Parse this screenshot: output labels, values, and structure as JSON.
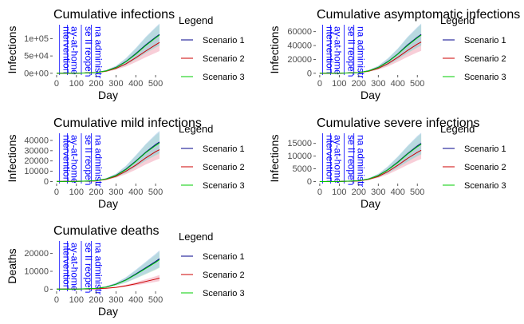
{
  "legend_title": "Legend",
  "series_colors": {
    "Scenario 1": "#00008b",
    "Scenario 2": "#cc0000",
    "Scenario 3": "#00cc00"
  },
  "band_colors": {
    "Scenario 1": "#9ec5e8",
    "Scenario 2": "#f2a6b8",
    "Scenario 3": "#b8e8b8"
  },
  "annotation_color": "#0000ff",
  "annotations": [
    {
      "x": 15,
      "label": "ntervention"
    },
    {
      "x": 55,
      "label": "ay-at-home"
    },
    {
      "x": 125,
      "label": "se II reopen"
    },
    {
      "x": 175,
      "label": "na administr"
    }
  ],
  "chart_data": [
    {
      "type": "line",
      "title": "Cumulative infections",
      "xlabel": "Day",
      "ylabel": "Infections",
      "xlim": [
        -20,
        540
      ],
      "ylim": [
        -5000,
        140000
      ],
      "xticks": [
        0,
        100,
        200,
        300,
        400,
        500
      ],
      "yticks": [
        0,
        50000,
        100000
      ],
      "ytick_labels": [
        "0e+00",
        "5e+04",
        "1e+05"
      ],
      "x": [
        0,
        100,
        200,
        250,
        300,
        350,
        400,
        450,
        500,
        520
      ],
      "series": [
        {
          "name": "Scenario 1",
          "values": [
            0,
            200,
            2000,
            7000,
            17000,
            34000,
            57000,
            82000,
            104000,
            112000
          ]
        },
        {
          "name": "Scenario 2",
          "values": [
            0,
            200,
            1800,
            6000,
            14000,
            27000,
            45000,
            64000,
            82000,
            89000
          ]
        },
        {
          "name": "Scenario 3",
          "values": [
            0,
            200,
            2000,
            6800,
            16500,
            33000,
            55000,
            80000,
            102000,
            110000
          ]
        }
      ]
    },
    {
      "type": "line",
      "title": "Cumulative asymptomatic infections",
      "xlabel": "Day",
      "ylabel": "Infections",
      "xlim": [
        -20,
        540
      ],
      "ylim": [
        -2500,
        70000
      ],
      "xticks": [
        0,
        100,
        200,
        300,
        400,
        500
      ],
      "yticks": [
        0,
        20000,
        40000,
        60000
      ],
      "ytick_labels": [
        "0",
        "20000",
        "40000",
        "60000"
      ],
      "x": [
        0,
        100,
        200,
        250,
        300,
        350,
        400,
        450,
        500,
        520
      ],
      "series": [
        {
          "name": "Scenario 1",
          "values": [
            0,
            100,
            1000,
            3500,
            8500,
            17000,
            28000,
            41000,
            52000,
            56000
          ]
        },
        {
          "name": "Scenario 2",
          "values": [
            0,
            100,
            900,
            3000,
            7000,
            14000,
            23000,
            33000,
            42000,
            45000
          ]
        },
        {
          "name": "Scenario 3",
          "values": [
            0,
            100,
            1000,
            3400,
            8300,
            16500,
            27500,
            40000,
            51000,
            55000
          ]
        }
      ]
    },
    {
      "type": "line",
      "title": "Cumulative mild infections",
      "xlabel": "Day",
      "ylabel": "Infections",
      "xlim": [
        -20,
        540
      ],
      "ylim": [
        -2000,
        47000
      ],
      "xticks": [
        0,
        100,
        200,
        300,
        400,
        500
      ],
      "yticks": [
        0,
        10000,
        20000,
        30000,
        40000
      ],
      "ytick_labels": [
        "0",
        "10000",
        "20000",
        "30000",
        "40000"
      ],
      "x": [
        0,
        100,
        200,
        250,
        300,
        350,
        400,
        450,
        500,
        520
      ],
      "series": [
        {
          "name": "Scenario 1",
          "values": [
            0,
            80,
            700,
            2500,
            6000,
            12000,
            20000,
            28500,
            36000,
            38500
          ]
        },
        {
          "name": "Scenario 2",
          "values": [
            0,
            80,
            600,
            2100,
            5000,
            10000,
            16000,
            23000,
            29000,
            31000
          ]
        },
        {
          "name": "Scenario 3",
          "values": [
            0,
            80,
            700,
            2400,
            5800,
            11500,
            19500,
            28000,
            35000,
            37500
          ]
        }
      ]
    },
    {
      "type": "line",
      "title": "Cumulative severe infections",
      "xlabel": "Day",
      "ylabel": "Infections",
      "xlim": [
        -20,
        540
      ],
      "ylim": [
        -800,
        19000
      ],
      "xticks": [
        0,
        100,
        200,
        300,
        400,
        500
      ],
      "yticks": [
        0,
        5000,
        10000,
        15000
      ],
      "ytick_labels": [
        "0",
        "5000",
        "10000",
        "15000"
      ],
      "x": [
        0,
        100,
        200,
        250,
        300,
        350,
        400,
        450,
        500,
        520
      ],
      "series": [
        {
          "name": "Scenario 1",
          "values": [
            0,
            30,
            300,
            1000,
            2400,
            4700,
            7700,
            11000,
            14000,
            15000
          ]
        },
        {
          "name": "Scenario 2",
          "values": [
            0,
            30,
            250,
            850,
            2000,
            3900,
            6400,
            9100,
            11500,
            12300
          ]
        },
        {
          "name": "Scenario 3",
          "values": [
            0,
            30,
            300,
            980,
            2350,
            4600,
            7500,
            10800,
            13700,
            14700
          ]
        }
      ]
    },
    {
      "type": "line",
      "title": "Cumulative deaths",
      "xlabel": "Day",
      "ylabel": "Deaths",
      "xlim": [
        -20,
        540
      ],
      "ylim": [
        -1200,
        27000
      ],
      "xticks": [
        0,
        100,
        200,
        300,
        400,
        500
      ],
      "yticks": [
        0,
        10000,
        20000
      ],
      "ytick_labels": [
        "0",
        "10000",
        "20000"
      ],
      "x": [
        0,
        100,
        200,
        250,
        300,
        350,
        400,
        450,
        500,
        520
      ],
      "series": [
        {
          "name": "Scenario 1",
          "values": [
            0,
            40,
            400,
            1200,
            2800,
            5200,
            8500,
            12000,
            15500,
            17000
          ]
        },
        {
          "name": "Scenario 2",
          "values": [
            0,
            30,
            200,
            500,
            1000,
            1900,
            3000,
            4300,
            5600,
            6200
          ]
        },
        {
          "name": "Scenario 3",
          "values": [
            0,
            40,
            390,
            1150,
            2700,
            5000,
            8200,
            11600,
            15000,
            16500
          ]
        }
      ]
    }
  ]
}
